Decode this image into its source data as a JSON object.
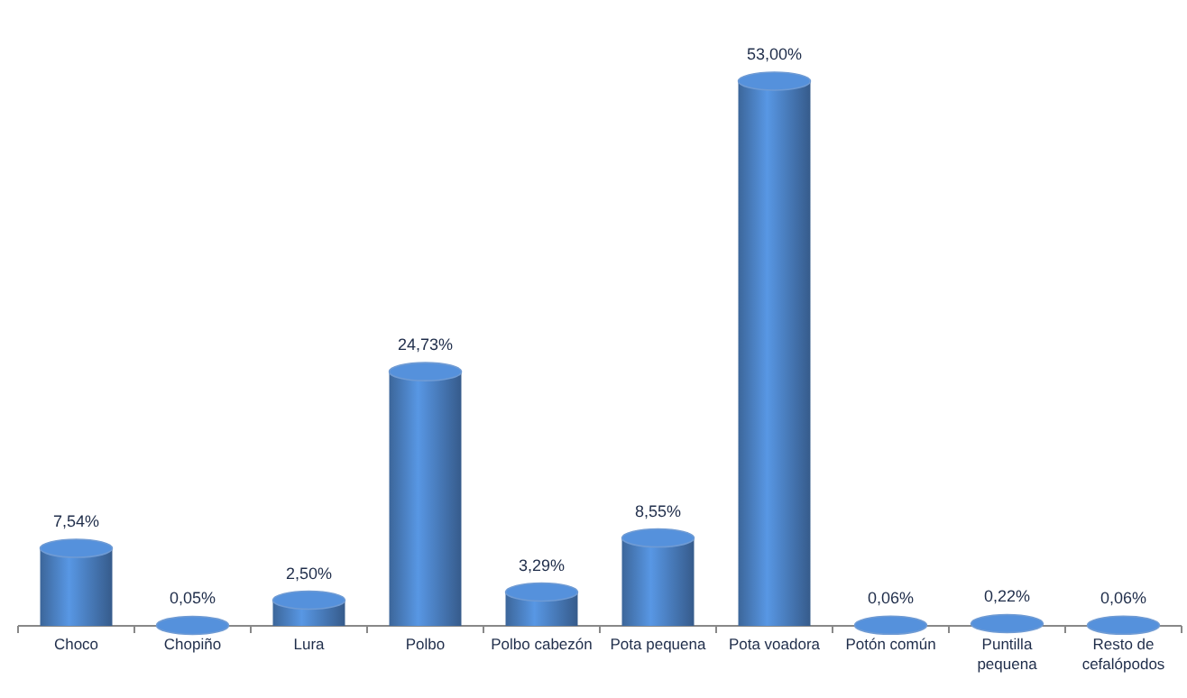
{
  "chart_data": {
    "type": "bar",
    "categories": [
      "Choco",
      "Chopiño",
      "Lura",
      "Polbo",
      "Polbo cabezón",
      "Pota pequena",
      "Pota voadora",
      "Potón común",
      "Puntilla pequena",
      "Resto de cefalópodos"
    ],
    "values": [
      7.54,
      0.05,
      2.5,
      24.73,
      3.29,
      8.55,
      53.0,
      0.06,
      0.22,
      0.06
    ],
    "value_labels": [
      "7,54%",
      "0,05%",
      "2,50%",
      "24,73%",
      "3,29%",
      "8,55%",
      "53,00%",
      "0,06%",
      "0,22%",
      "0,06%"
    ],
    "color": "#4a7ebf"
  }
}
